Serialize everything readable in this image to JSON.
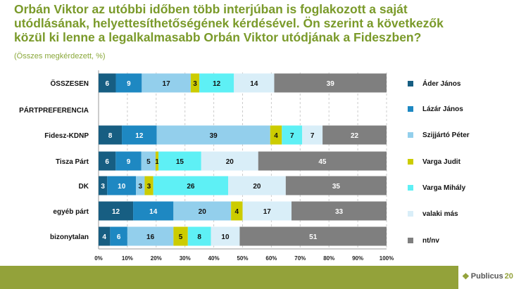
{
  "title": "Orbán Viktor az utóbbi időben több interjúban is foglakozott a saját utódlásának, helyettesíthetőségének kérdésével. Ön szerint a következők közül ki lenne a legalkalmasabb Orbán Viktor utódjának a Fideszben?",
  "subtitle": "(Összes megkérdezett, %)",
  "logo": {
    "name": "Publicus",
    "number": "20"
  },
  "chart_data": {
    "type": "bar",
    "orientation": "horizontal-stacked-100",
    "categories": [
      "ÖSSZESEN",
      "PÁRTPREFERENCIA",
      "Fidesz-KDNP",
      "Tisza Párt",
      "DK",
      "egyéb párt",
      "bizonytalan"
    ],
    "series": [
      {
        "name": "Áder János",
        "color": "#175e82",
        "values": [
          6,
          null,
          8,
          6,
          3,
          12,
          4
        ]
      },
      {
        "name": "Lázár János",
        "color": "#1e88c2",
        "values": [
          9,
          null,
          12,
          9,
          10,
          14,
          6
        ]
      },
      {
        "name": "Szijjártó Péter",
        "color": "#93cfec",
        "values": [
          17,
          null,
          39,
          5,
          3,
          20,
          16
        ]
      },
      {
        "name": "Varga Judit",
        "color": "#cccc00",
        "values": [
          3,
          null,
          4,
          1,
          3,
          4,
          5
        ]
      },
      {
        "name": "Varga Mihály",
        "color": "#5ef0f5",
        "values": [
          12,
          null,
          7,
          15,
          26,
          0,
          8
        ]
      },
      {
        "name": "valaki más",
        "color": "#d9eef8",
        "values": [
          14,
          null,
          7,
          20,
          20,
          17,
          10
        ]
      },
      {
        "name": "nt/nv",
        "color": "#7f7f7f",
        "values": [
          39,
          null,
          22,
          45,
          35,
          33,
          51
        ]
      }
    ],
    "xticks": [
      "0%",
      "10%",
      "20%",
      "30%",
      "40%",
      "50%",
      "60%",
      "70%",
      "80%",
      "90%",
      "100%"
    ],
    "xlim": [
      0,
      100
    ],
    "grid": true,
    "legend": "right"
  }
}
